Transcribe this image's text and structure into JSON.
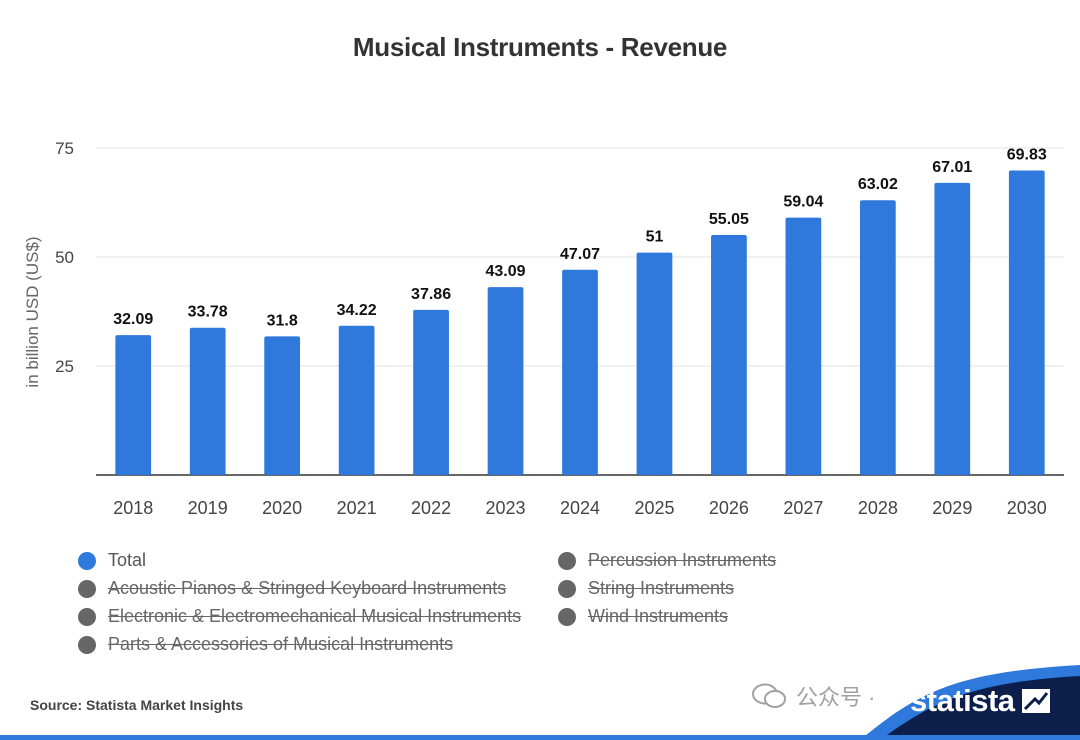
{
  "chart_data": {
    "type": "bar",
    "title": "Musical Instruments - Revenue",
    "ylabel": "in billion USD (US$)",
    "xlabel": "",
    "categories": [
      "2018",
      "2019",
      "2020",
      "2021",
      "2022",
      "2023",
      "2024",
      "2025",
      "2026",
      "2027",
      "2028",
      "2029",
      "2030"
    ],
    "values": [
      32.09,
      33.78,
      31.8,
      34.22,
      37.86,
      43.09,
      47.07,
      51,
      55.05,
      59.04,
      63.02,
      67.01,
      69.83
    ],
    "data_labels": [
      "32.09",
      "33.78",
      "31.8",
      "34.22",
      "37.86",
      "43.09",
      "47.07",
      "51",
      "55.05",
      "59.04",
      "63.02",
      "67.01",
      "69.83"
    ],
    "ylim": [
      0,
      75
    ],
    "yticks": [
      25,
      50,
      75
    ],
    "grid": true,
    "bar_color": "#2f78dc",
    "legend": [
      {
        "label": "Total",
        "color": "#2f78dc",
        "active": true
      },
      {
        "label": "Acoustic Pianos & Stringed Keyboard Instruments",
        "color": "#666666",
        "active": false
      },
      {
        "label": "Electronic & Electromechanical Musical Instruments",
        "color": "#666666",
        "active": false
      },
      {
        "label": "Parts & Accessories of Musical Instruments",
        "color": "#666666",
        "active": false
      },
      {
        "label": "Percussion Instruments",
        "color": "#666666",
        "active": false
      },
      {
        "label": "String Instruments",
        "color": "#666666",
        "active": false
      },
      {
        "label": "Wind Instruments",
        "color": "#666666",
        "active": false
      }
    ]
  },
  "source": "Source: Statista Market Insights",
  "brand": "statista",
  "watermark": "公众号 ·",
  "colors": {
    "band_dark": "#0b1f4a",
    "band_blue": "#2f78dc"
  }
}
